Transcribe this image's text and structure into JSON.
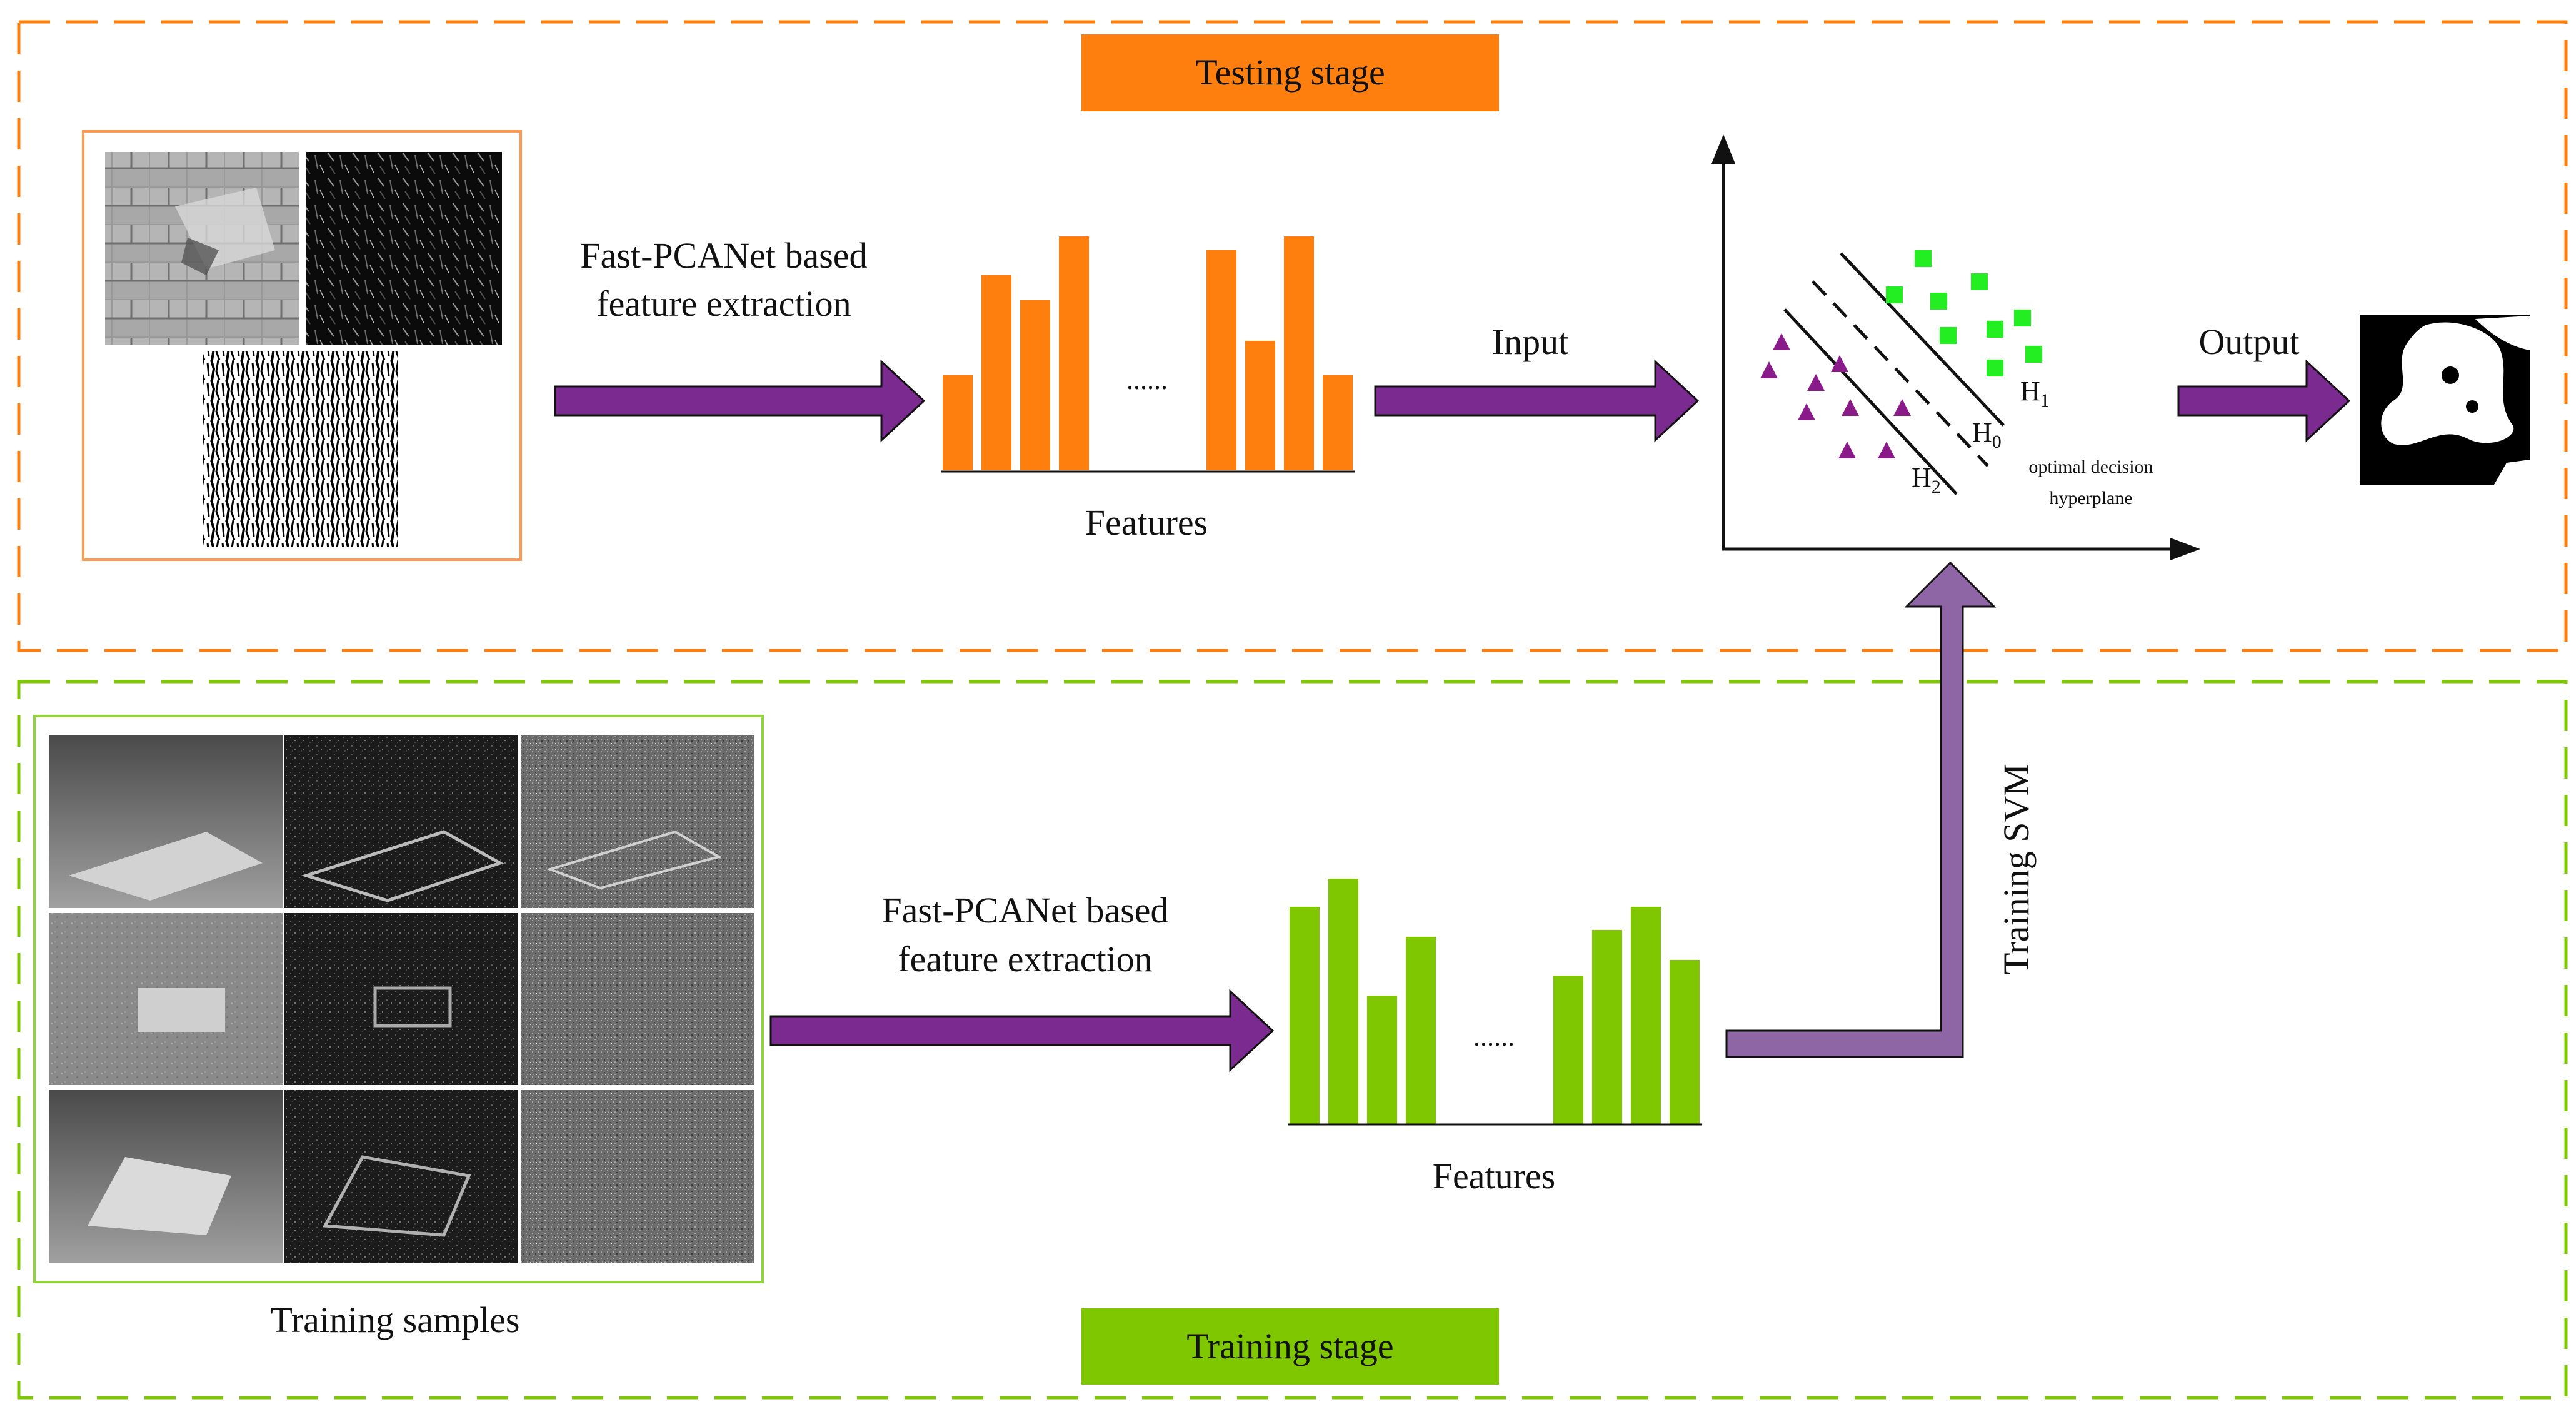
{
  "testing_stage": {
    "title": "Testing stage",
    "feature_extraction_label": [
      "Fast-PCANet based",
      "feature extraction"
    ],
    "features_label": "Features",
    "ellipsis": "......",
    "input_label": "Input",
    "output_label": "Output"
  },
  "training_stage": {
    "title": "Training stage",
    "samples_label": "Training samples",
    "feature_extraction_label": [
      "Fast-PCANet based",
      "feature extraction"
    ],
    "features_label": "Features",
    "ellipsis": "......",
    "training_svm_label": "Training SVM"
  },
  "svm_plot": {
    "h1_label": "H",
    "h1_sub": "1",
    "h0_label": "H",
    "h0_sub": "0",
    "h2_label": "H",
    "h2_sub": "2",
    "hyperplane_label": [
      "optimal decision",
      "hyperplane"
    ]
  },
  "colors": {
    "testing": "#ff7f0e",
    "training": "#7fc700",
    "arrow_purple": "#7b2a8f",
    "arrow_svm": "#8e65a5",
    "class_green": "#22ee22",
    "class_purple": "#8a1a8a"
  }
}
